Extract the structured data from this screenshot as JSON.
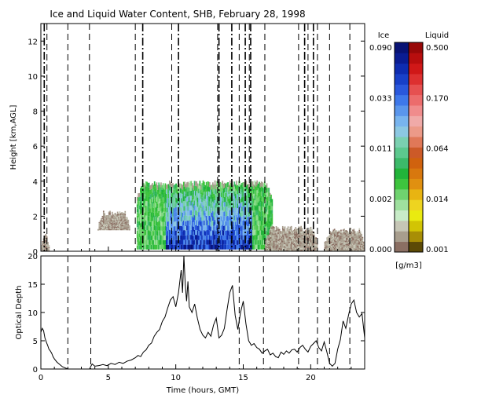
{
  "chart_data": [
    {
      "type": "heatmap",
      "title": "Ice and Liquid Water Content, SHB, February 28, 1998",
      "xlabel": "",
      "ylabel": "Height [km,AGL]",
      "xlim": [
        0,
        24
      ],
      "ylim": [
        0,
        13
      ],
      "yticks": [
        "0",
        "2",
        "4",
        "6",
        "8",
        "10",
        "12"
      ],
      "colorbar": {
        "ice_label": "Ice",
        "liquid_label": "Liquid",
        "units": "[g/m3]",
        "ice_ticks": [
          "0.090",
          "0.033",
          "0.011",
          "0.002",
          "0.000"
        ],
        "liquid_ticks": [
          "0.500",
          "0.170",
          "0.064",
          "0.014",
          "0.001"
        ],
        "ice_colors": [
          "#8b6f63",
          "#a89e8e",
          "#c6c6b6",
          "#c8ecc8",
          "#9fe09f",
          "#6fd36f",
          "#3ec43e",
          "#22b43a",
          "#3cba6a",
          "#5cc88e",
          "#7ad0b0",
          "#8cc8e2",
          "#78b4ee",
          "#5a96ec",
          "#3e78ea",
          "#2a58dc",
          "#1840c8",
          "#0e2cb0",
          "#0a1c92",
          "#081274"
        ],
        "liquid_colors": [
          "#5c4a06",
          "#a88e06",
          "#d2c404",
          "#eaea10",
          "#eed420",
          "#e8b412",
          "#e09010",
          "#d8780e",
          "#d0620e",
          "#cc5a28",
          "#e07858",
          "#ec9a88",
          "#f0aaa8",
          "#f08c8c",
          "#ec6c6c",
          "#e65050",
          "#dd3030",
          "#d01818",
          "#b80e0e",
          "#980808"
        ]
      },
      "cloud_layers": [
        {
          "kind": "ice",
          "start_hour": 7.1,
          "end_hour": 17.1,
          "base_km": 0.1,
          "top_km": 3.9,
          "core_start_hour": 9.2,
          "core_end_hour": 15.6,
          "core_top_km": 3.6
        },
        {
          "kind": "liquid",
          "start_hour": 0.0,
          "end_hour": 0.6,
          "base_km": 0.0,
          "top_km": 1.2
        },
        {
          "kind": "liquid",
          "start_hour": 4.2,
          "end_hour": 6.6,
          "base_km": 1.2,
          "top_km": 2.2
        },
        {
          "kind": "liquid",
          "start_hour": 16.6,
          "end_hour": 20.5,
          "base_km": 0.0,
          "top_km": 1.3
        },
        {
          "kind": "liquid",
          "start_hour": 21.0,
          "end_hour": 24.0,
          "base_km": 0.0,
          "top_km": 1.2
        }
      ],
      "dashed_lines_hours": [
        0.45,
        2.0,
        3.6,
        7.0,
        9.7,
        13.1,
        14.7,
        15.45,
        16.6,
        19.1,
        19.8,
        20.5,
        21.4,
        22.9
      ],
      "dashdot_lines_hours": [
        0.25,
        7.55,
        10.2,
        13.2,
        14.15,
        15.15,
        15.55,
        19.55,
        20.2
      ]
    },
    {
      "type": "line",
      "title": "",
      "xlabel": "Time (hours, GMT)",
      "ylabel": "Optical Depth",
      "xlim": [
        0,
        24
      ],
      "ylim": [
        0,
        20
      ],
      "xticks": [
        "0",
        "5",
        "10",
        "15",
        "20"
      ],
      "yticks": [
        "0",
        "5",
        "10",
        "15",
        "20"
      ],
      "dashed_lines_hours": [
        2.0,
        3.7,
        14.7,
        16.5,
        19.1,
        20.5,
        21.4,
        22.9
      ],
      "series": [
        {
          "x": [
            0.0,
            0.1,
            0.2,
            0.3,
            0.4,
            0.5,
            0.6,
            0.7,
            0.8,
            0.9,
            1.0,
            1.2,
            1.4,
            1.6,
            1.8,
            2.0,
            2.5,
            3.0,
            3.5,
            3.6,
            3.8,
            4.0,
            4.3,
            4.6,
            4.9,
            5.2,
            5.5,
            5.8,
            6.1,
            6.4,
            6.7,
            7.0,
            7.2,
            7.4,
            7.6,
            7.8,
            8.0,
            8.2,
            8.4,
            8.6,
            8.8,
            9.0,
            9.2,
            9.4,
            9.6,
            9.8,
            10.0,
            10.2,
            10.4,
            10.5,
            10.6,
            10.7,
            10.8,
            10.9,
            11.0,
            11.2,
            11.4,
            11.6,
            11.8,
            12.0,
            12.2,
            12.4,
            12.6,
            12.8,
            13.0,
            13.2,
            13.4,
            13.6,
            13.8,
            14.0,
            14.2,
            14.4,
            14.6,
            14.8,
            15.0,
            15.2,
            15.4,
            15.6,
            15.8,
            16.0,
            16.2,
            16.4,
            16.6,
            16.8,
            17.0,
            17.2,
            17.4,
            17.6,
            17.8,
            18.0,
            18.2,
            18.4,
            18.6,
            18.8,
            19.0,
            19.2,
            19.4,
            19.6,
            19.8,
            20.0,
            20.2,
            20.4,
            20.6,
            20.8,
            21.0,
            21.2,
            21.4,
            21.6,
            21.8,
            22.0,
            22.2,
            22.4,
            22.6,
            22.8,
            23.0,
            23.2,
            23.4,
            23.6,
            23.8,
            24.0
          ],
          "values": [
            6.5,
            7.2,
            6.8,
            5.5,
            4.8,
            4.2,
            3.5,
            3.2,
            2.8,
            2.2,
            1.8,
            1.2,
            0.8,
            0.4,
            0.2,
            0.0,
            0.0,
            0.0,
            0.0,
            0.0,
            0.9,
            0.5,
            0.6,
            0.8,
            0.6,
            1.0,
            0.8,
            1.2,
            1.0,
            1.4,
            1.6,
            2.0,
            2.4,
            2.2,
            3.0,
            3.4,
            4.2,
            4.6,
            5.8,
            6.5,
            7.0,
            8.4,
            9.2,
            10.8,
            12.2,
            12.8,
            11.0,
            13.5,
            17.5,
            13.5,
            20.0,
            15.0,
            12.0,
            15.5,
            11.0,
            10.0,
            11.5,
            9.0,
            7.0,
            6.0,
            5.5,
            6.5,
            5.8,
            7.8,
            9.0,
            5.5,
            6.0,
            7.2,
            10.5,
            13.5,
            14.8,
            9.5,
            7.0,
            10.0,
            12.0,
            8.0,
            5.0,
            4.2,
            4.5,
            3.8,
            3.5,
            2.8,
            3.2,
            3.5,
            2.5,
            2.8,
            2.2,
            2.0,
            3.0,
            2.6,
            3.2,
            2.8,
            3.4,
            3.5,
            3.0,
            3.8,
            4.2,
            3.5,
            3.0,
            4.0,
            4.5,
            5.0,
            3.8,
            3.2,
            4.8,
            3.0,
            1.0,
            0.5,
            1.0,
            3.5,
            5.2,
            8.5,
            7.2,
            9.5,
            11.5,
            12.2,
            10.0,
            9.2,
            9.8,
            5.5
          ]
        }
      ]
    }
  ]
}
